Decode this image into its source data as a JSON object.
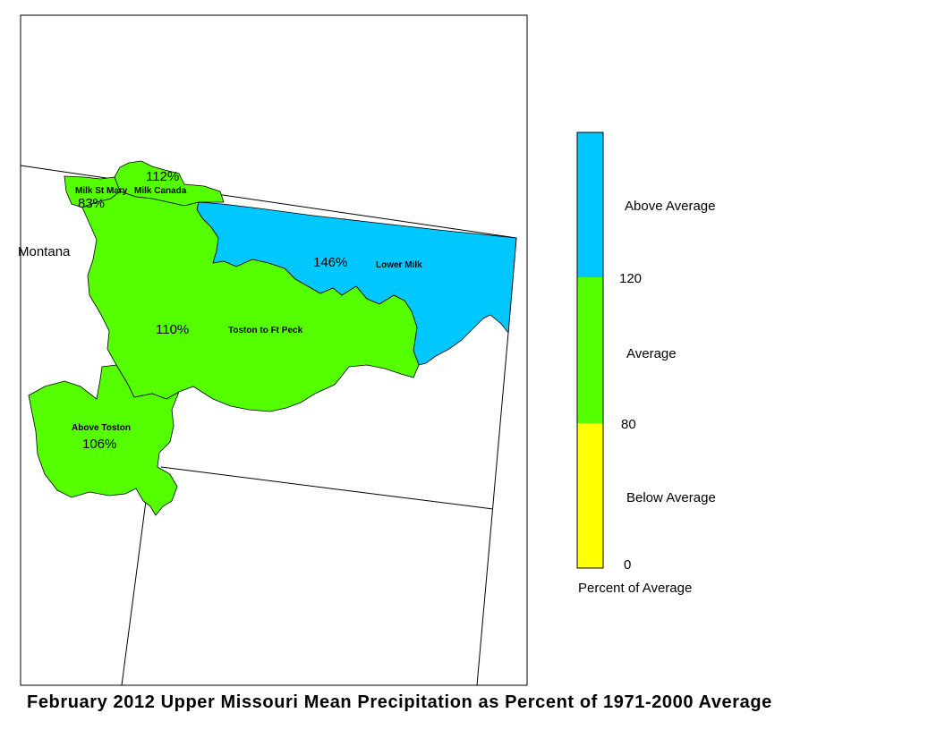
{
  "title": "February 2012 Upper Missouri Mean Precipitation as Percent of 1971-2000 Average",
  "state_label": "Montana",
  "basins": [
    {
      "name": "Milk St Mary",
      "percent": "83%",
      "color": "#55ff00"
    },
    {
      "name": "Milk Canada",
      "percent": "112%",
      "color": "#55ff00"
    },
    {
      "name": "Lower Milk",
      "percent": "146%",
      "color": "#00c8ff"
    },
    {
      "name": "Toston to Ft Peck",
      "percent": "110%",
      "color": "#55ff00"
    },
    {
      "name": "Above Toston",
      "percent": "106%",
      "color": "#55ff00"
    }
  ],
  "legend": {
    "title": "Percent of Average",
    "categories": [
      {
        "label": "Above Average",
        "color": "#00c8ff"
      },
      {
        "label": "Average",
        "color": "#55ff00"
      },
      {
        "label": "Below Average",
        "color": "#ffff00"
      }
    ],
    "ticks": [
      "120",
      "80",
      "0"
    ]
  }
}
